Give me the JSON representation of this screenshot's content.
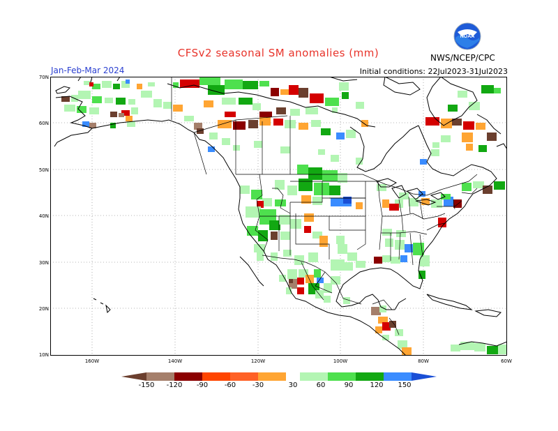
{
  "header": {
    "title": "CFSv2 seasonal SM anomalies (mm)",
    "period": "Jan-Feb-Mar 2024",
    "initial_conditions": "Initial conditions: 22Jul2023-31Jul2023",
    "source": "NWS/NCEP/CPC",
    "logo_text": "NOAA"
  },
  "map": {
    "lat_labels": [
      "70N",
      "60N",
      "50N",
      "40N",
      "30N",
      "20N",
      "10N"
    ],
    "lon_labels": [
      "160W",
      "140W",
      "120W",
      "100W",
      "80W",
      "60W"
    ],
    "lat_range": [
      10,
      70
    ],
    "lon_range": [
      -170,
      -60
    ],
    "ocean_color": "#ffffff",
    "coast_color": "#000000",
    "grid_style": "dotted"
  },
  "colorbar": {
    "labels": [
      "-150",
      "-120",
      "-90",
      "-60",
      "-30",
      "30",
      "60",
      "90",
      "120",
      "150"
    ],
    "colors": [
      "#6b3f2e",
      "#a57f6b",
      "#8b0000",
      "#d40000",
      "#ff4500",
      "#ffa533",
      "#ffffff",
      "#b3f5b3",
      "#4ee04e",
      "#12a812",
      "#3a8cff",
      "#1a4fd6"
    ]
  },
  "anomaly_classes": {
    "brown_dark": "#6b3f2e",
    "brown": "#a57f6b",
    "dark_red": "#8b0000",
    "red": "#d40000",
    "orange_red": "#ff4500",
    "orange": "#ffa533",
    "light_green": "#b3f5b3",
    "green": "#4ee04e",
    "dark_green": "#12a812",
    "blue": "#3a8cff"
  }
}
